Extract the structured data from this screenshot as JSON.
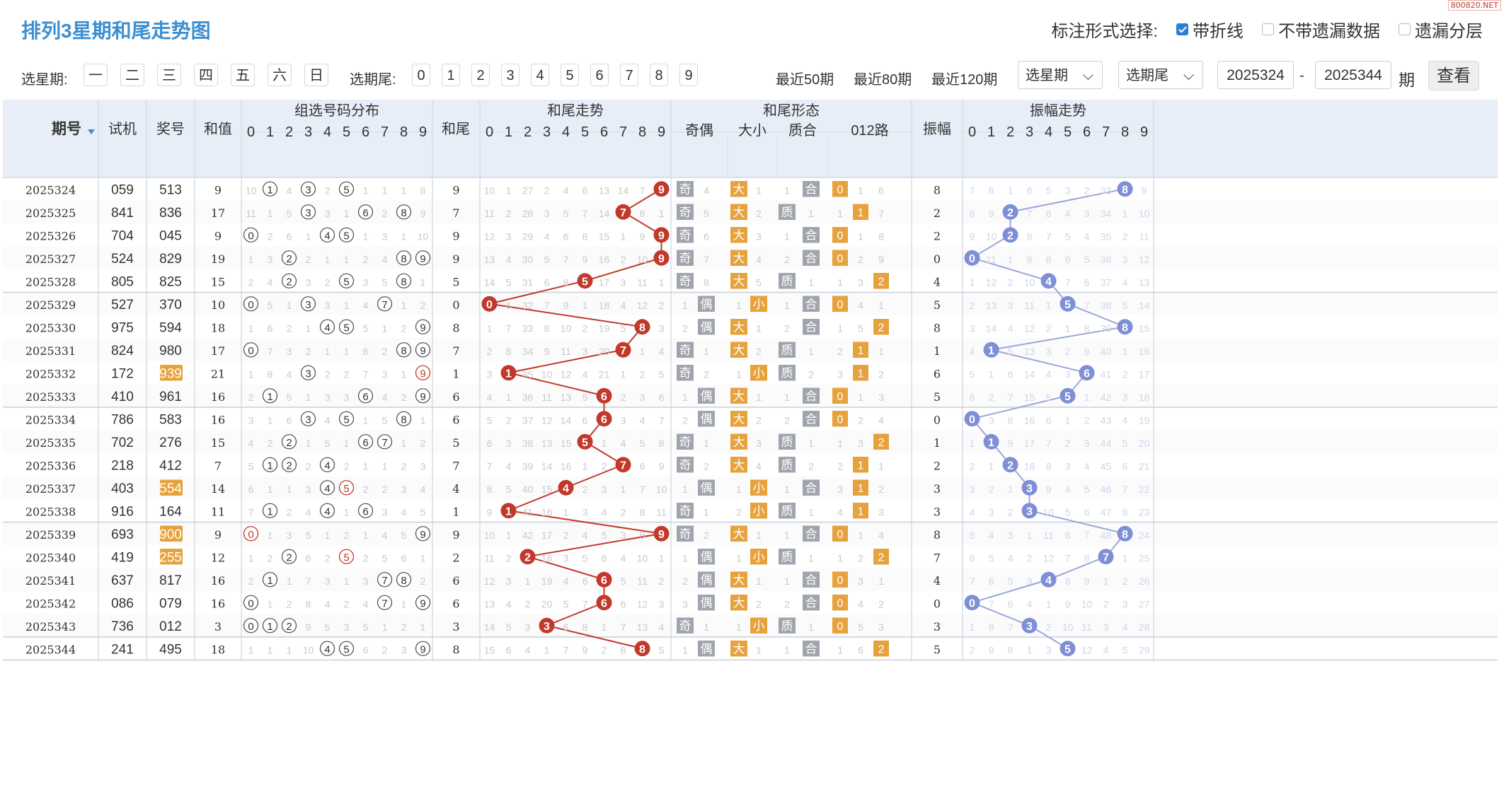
{
  "watermark": "800820.NET",
  "title": "排列3星期和尾走势图",
  "options": {
    "label": "标注形式选择:",
    "items": [
      {
        "label": "带折线",
        "checked": true
      },
      {
        "label": "不带遗漏数据",
        "checked": false
      },
      {
        "label": "遗漏分层",
        "checked": false
      }
    ]
  },
  "filter": {
    "week_label": "选星期:",
    "weeks": [
      "一",
      "二",
      "三",
      "四",
      "五",
      "六",
      "日"
    ],
    "tail_label": "选期尾:",
    "tails": [
      "0",
      "1",
      "2",
      "3",
      "4",
      "5",
      "6",
      "7",
      "8",
      "9"
    ],
    "recent": [
      "最近50期",
      "最近80期",
      "最近120期"
    ],
    "select_week": "选星期",
    "select_tail": "选期尾",
    "from": "2025324",
    "dash": "-",
    "to": "2025344",
    "period_word": "期",
    "view": "查看"
  },
  "headers": {
    "period": "期号",
    "test": "试机",
    "prize": "奖号",
    "sum": "和值",
    "dist": "组选号码分布",
    "tail": "和尾",
    "trend": "和尾走势",
    "shape": "和尾形态",
    "oddeven": "奇偶",
    "bigsmall": "大小",
    "primecomp": "质合",
    "road": "012路",
    "amp": "振幅",
    "amptrend": "振幅走势",
    "digits": [
      "0",
      "1",
      "2",
      "3",
      "4",
      "5",
      "6",
      "7",
      "8",
      "9"
    ]
  },
  "colors": {
    "header_bg": "#e7eef7",
    "header_text": "#333333",
    "ball_red": "#c0392b",
    "ball_blue": "#7e8fd6",
    "tag_orange": "#e6a23c",
    "tag_gray": "#a0a4ad",
    "miss_gray": "#c9c9c9",
    "row_alt": "#fbfbfb"
  },
  "rows": [
    {
      "period": "2025324",
      "test": "059",
      "prize": "513",
      "ph": false,
      "sum": "9",
      "dist": [
        "10",
        "①",
        "4",
        "③",
        "2",
        "⑤",
        "1",
        "1",
        "1",
        "8"
      ],
      "tail": "9",
      "trend": [
        "10",
        "1",
        "27",
        "2",
        "4",
        "6",
        "13",
        "14",
        "7",
        "9"
      ],
      "oe": "奇",
      "oe_n": "4",
      "oe_pos": 0,
      "bs": "大",
      "bs_n": "1",
      "bs_pos": 0,
      "pc": "合",
      "pc_n": "1",
      "pc_pos": 1,
      "rd": [
        "0",
        "1",
        "6"
      ],
      "rd_pos": 0,
      "amp": "8",
      "at": [
        "7",
        "8",
        "1",
        "6",
        "5",
        "3",
        "2",
        "33",
        "8",
        "9"
      ]
    },
    {
      "period": "2025325",
      "test": "841",
      "prize": "836",
      "ph": false,
      "sum": "17",
      "dist": [
        "11",
        "1",
        "5",
        "③",
        "3",
        "1",
        "⑥",
        "2",
        "⑧",
        "9"
      ],
      "tail": "7",
      "trend": [
        "11",
        "2",
        "28",
        "3",
        "5",
        "7",
        "14",
        "7",
        "8",
        "1"
      ],
      "oe": "奇",
      "oe_n": "5",
      "oe_pos": 0,
      "bs": "大",
      "bs_n": "2",
      "bs_pos": 0,
      "pc": "质",
      "pc_n": "1",
      "pc_pos": 0,
      "rd": [
        "1",
        "1",
        "7"
      ],
      "rd_pos": 1,
      "amp": "2",
      "at": [
        "8",
        "9",
        "2",
        "7",
        "6",
        "4",
        "3",
        "34",
        "1",
        "10"
      ]
    },
    {
      "period": "2025326",
      "test": "704",
      "prize": "045",
      "ph": false,
      "sum": "9",
      "dist": [
        "⓪",
        "2",
        "6",
        "1",
        "④",
        "⑤",
        "1",
        "3",
        "1",
        "10"
      ],
      "tail": "9",
      "trend": [
        "12",
        "3",
        "29",
        "4",
        "6",
        "8",
        "15",
        "1",
        "9",
        "9"
      ],
      "oe": "奇",
      "oe_n": "6",
      "oe_pos": 0,
      "bs": "大",
      "bs_n": "3",
      "bs_pos": 0,
      "pc": "合",
      "pc_n": "1",
      "pc_pos": 1,
      "rd": [
        "0",
        "1",
        "8"
      ],
      "rd_pos": 0,
      "amp": "2",
      "at": [
        "9",
        "10",
        "2",
        "8",
        "7",
        "5",
        "4",
        "35",
        "2",
        "11"
      ]
    },
    {
      "period": "2025327",
      "test": "524",
      "prize": "829",
      "ph": false,
      "sum": "19",
      "dist": [
        "1",
        "3",
        "②",
        "2",
        "1",
        "1",
        "2",
        "4",
        "⑧",
        "⑨"
      ],
      "tail": "9",
      "trend": [
        "13",
        "4",
        "30",
        "5",
        "7",
        "9",
        "16",
        "2",
        "10",
        "9"
      ],
      "oe": "奇",
      "oe_n": "7",
      "oe_pos": 0,
      "bs": "大",
      "bs_n": "4",
      "bs_pos": 0,
      "pc": "合",
      "pc_n": "2",
      "pc_pos": 1,
      "rd": [
        "0",
        "2",
        "9"
      ],
      "rd_pos": 0,
      "amp": "0",
      "at": [
        "0",
        "11",
        "1",
        "9",
        "8",
        "6",
        "5",
        "36",
        "3",
        "12"
      ]
    },
    {
      "period": "2025328",
      "test": "805",
      "prize": "825",
      "ph": false,
      "sum": "15",
      "dist": [
        "2",
        "4",
        "②",
        "3",
        "2",
        "⑤",
        "3",
        "5",
        "⑧",
        "1"
      ],
      "tail": "5",
      "trend": [
        "14",
        "5",
        "31",
        "6",
        "8",
        "5",
        "17",
        "3",
        "11",
        "1"
      ],
      "oe": "奇",
      "oe_n": "8",
      "oe_pos": 0,
      "bs": "大",
      "bs_n": "5",
      "bs_pos": 0,
      "pc": "质",
      "pc_n": "1",
      "pc_pos": 0,
      "rd": [
        "1",
        "3",
        "2"
      ],
      "rd_pos": 2,
      "amp": "4",
      "at": [
        "1",
        "12",
        "2",
        "10",
        "4",
        "7",
        "6",
        "37",
        "4",
        "13"
      ]
    },
    {
      "period": "2025329",
      "test": "527",
      "prize": "370",
      "ph": false,
      "sum": "10",
      "dist": [
        "⓪",
        "5",
        "1",
        "③",
        "3",
        "1",
        "4",
        "⑦",
        "1",
        "2"
      ],
      "tail": "0",
      "trend": [
        "0",
        "6",
        "32",
        "7",
        "9",
        "1",
        "18",
        "4",
        "12",
        "2"
      ],
      "oe": "偶",
      "oe_n": "1",
      "oe_pos": 1,
      "bs": "小",
      "bs_n": "1",
      "bs_pos": 1,
      "pc": "合",
      "pc_n": "1",
      "pc_pos": 1,
      "rd": [
        "0",
        "4",
        "1"
      ],
      "rd_pos": 0,
      "amp": "5",
      "at": [
        "2",
        "13",
        "3",
        "11",
        "1",
        "5",
        "7",
        "38",
        "5",
        "14"
      ]
    },
    {
      "period": "2025330",
      "test": "975",
      "prize": "594",
      "ph": false,
      "sum": "18",
      "dist": [
        "1",
        "6",
        "2",
        "1",
        "④",
        "⑤",
        "5",
        "1",
        "2",
        "⑨"
      ],
      "tail": "8",
      "trend": [
        "1",
        "7",
        "33",
        "8",
        "10",
        "2",
        "19",
        "5",
        "8",
        "3"
      ],
      "oe": "偶",
      "oe_n": "2",
      "oe_pos": 1,
      "bs": "大",
      "bs_n": "1",
      "bs_pos": 0,
      "pc": "合",
      "pc_n": "2",
      "pc_pos": 1,
      "rd": [
        "1",
        "5",
        "2"
      ],
      "rd_pos": 2,
      "amp": "8",
      "at": [
        "3",
        "14",
        "4",
        "12",
        "2",
        "1",
        "8",
        "39",
        "8",
        "15"
      ]
    },
    {
      "period": "2025331",
      "test": "824",
      "prize": "980",
      "ph": false,
      "sum": "17",
      "dist": [
        "⓪",
        "7",
        "3",
        "2",
        "1",
        "1",
        "6",
        "2",
        "⑧",
        "⑨"
      ],
      "tail": "7",
      "trend": [
        "2",
        "8",
        "34",
        "9",
        "11",
        "3",
        "20",
        "7",
        "1",
        "4"
      ],
      "oe": "奇",
      "oe_n": "1",
      "oe_pos": 0,
      "bs": "大",
      "bs_n": "2",
      "bs_pos": 0,
      "pc": "质",
      "pc_n": "1",
      "pc_pos": 0,
      "rd": [
        "2",
        "1",
        "1"
      ],
      "rd_pos": 1,
      "amp": "1",
      "at": [
        "4",
        "1",
        "5",
        "13",
        "3",
        "2",
        "9",
        "40",
        "1",
        "16"
      ]
    },
    {
      "period": "2025332",
      "test": "172",
      "prize": "939",
      "ph": true,
      "sum": "21",
      "dist": [
        "1",
        "8",
        "4",
        "③",
        "2",
        "2",
        "7",
        "3",
        "1",
        "⑨"
      ],
      "tail": "1",
      "trend": [
        "3",
        "1",
        "35",
        "10",
        "12",
        "4",
        "21",
        "1",
        "2",
        "5"
      ],
      "oe": "奇",
      "oe_n": "2",
      "oe_pos": 0,
      "bs": "小",
      "bs_n": "1",
      "bs_pos": 1,
      "pc": "质",
      "pc_n": "2",
      "pc_pos": 0,
      "rd": [
        "3",
        "1",
        "2"
      ],
      "rd_pos": 1,
      "amp": "6",
      "at": [
        "5",
        "1",
        "6",
        "14",
        "4",
        "3",
        "6",
        "41",
        "2",
        "17"
      ]
    },
    {
      "period": "2025333",
      "test": "410",
      "prize": "961",
      "ph": false,
      "sum": "16",
      "dist": [
        "2",
        "①",
        "5",
        "1",
        "3",
        "3",
        "⑥",
        "4",
        "2",
        "⑨"
      ],
      "tail": "6",
      "trend": [
        "4",
        "1",
        "36",
        "11",
        "13",
        "5",
        "6",
        "2",
        "3",
        "6"
      ],
      "oe": "偶",
      "oe_n": "1",
      "oe_pos": 1,
      "bs": "大",
      "bs_n": "1",
      "bs_pos": 0,
      "pc": "合",
      "pc_n": "1",
      "pc_pos": 1,
      "rd": [
        "0",
        "1",
        "3"
      ],
      "rd_pos": 0,
      "amp": "5",
      "at": [
        "6",
        "2",
        "7",
        "15",
        "5",
        "5",
        "1",
        "42",
        "3",
        "18"
      ]
    },
    {
      "period": "2025334",
      "test": "786",
      "prize": "583",
      "ph": false,
      "sum": "16",
      "dist": [
        "3",
        "1",
        "6",
        "③",
        "4",
        "⑤",
        "1",
        "5",
        "⑧",
        "1"
      ],
      "tail": "6",
      "trend": [
        "5",
        "2",
        "37",
        "12",
        "14",
        "6",
        "6",
        "3",
        "4",
        "7"
      ],
      "oe": "偶",
      "oe_n": "2",
      "oe_pos": 1,
      "bs": "大",
      "bs_n": "2",
      "bs_pos": 0,
      "pc": "合",
      "pc_n": "2",
      "pc_pos": 1,
      "rd": [
        "0",
        "2",
        "4"
      ],
      "rd_pos": 0,
      "amp": "0",
      "at": [
        "0",
        "3",
        "8",
        "16",
        "6",
        "1",
        "2",
        "43",
        "4",
        "19"
      ]
    },
    {
      "period": "2025335",
      "test": "702",
      "prize": "276",
      "ph": false,
      "sum": "15",
      "dist": [
        "4",
        "2",
        "②",
        "1",
        "5",
        "1",
        "⑥",
        "⑦",
        "1",
        "2"
      ],
      "tail": "5",
      "trend": [
        "6",
        "3",
        "38",
        "13",
        "15",
        "5",
        "1",
        "4",
        "5",
        "8"
      ],
      "oe": "奇",
      "oe_n": "1",
      "oe_pos": 0,
      "bs": "大",
      "bs_n": "3",
      "bs_pos": 0,
      "pc": "质",
      "pc_n": "1",
      "pc_pos": 0,
      "rd": [
        "1",
        "3",
        "2"
      ],
      "rd_pos": 2,
      "amp": "1",
      "at": [
        "1",
        "1",
        "9",
        "17",
        "7",
        "2",
        "3",
        "44",
        "5",
        "20"
      ]
    },
    {
      "period": "2025336",
      "test": "218",
      "prize": "412",
      "ph": false,
      "sum": "7",
      "dist": [
        "5",
        "①",
        "②",
        "2",
        "④",
        "2",
        "1",
        "1",
        "2",
        "3"
      ],
      "tail": "7",
      "trend": [
        "7",
        "4",
        "39",
        "14",
        "16",
        "1",
        "2",
        "7",
        "6",
        "9"
      ],
      "oe": "奇",
      "oe_n": "2",
      "oe_pos": 0,
      "bs": "大",
      "bs_n": "4",
      "bs_pos": 0,
      "pc": "质",
      "pc_n": "2",
      "pc_pos": 0,
      "rd": [
        "2",
        "1",
        "1"
      ],
      "rd_pos": 1,
      "amp": "2",
      "at": [
        "2",
        "1",
        "2",
        "18",
        "8",
        "3",
        "4",
        "45",
        "6",
        "21"
      ]
    },
    {
      "period": "2025337",
      "test": "403",
      "prize": "554",
      "ph": true,
      "sum": "14",
      "dist": [
        "6",
        "1",
        "1",
        "3",
        "④",
        "⑤",
        "2",
        "2",
        "3",
        "4"
      ],
      "tail": "4",
      "trend": [
        "8",
        "5",
        "40",
        "15",
        "4",
        "2",
        "3",
        "1",
        "7",
        "10"
      ],
      "oe": "偶",
      "oe_n": "1",
      "oe_pos": 1,
      "bs": "小",
      "bs_n": "1",
      "bs_pos": 1,
      "pc": "合",
      "pc_n": "1",
      "pc_pos": 1,
      "rd": [
        "3",
        "1",
        "2"
      ],
      "rd_pos": 1,
      "amp": "3",
      "at": [
        "3",
        "2",
        "1",
        "3",
        "9",
        "4",
        "5",
        "46",
        "7",
        "22"
      ]
    },
    {
      "period": "2025338",
      "test": "916",
      "prize": "164",
      "ph": false,
      "sum": "11",
      "dist": [
        "7",
        "①",
        "2",
        "4",
        "④",
        "1",
        "⑥",
        "3",
        "4",
        "5"
      ],
      "tail": "1",
      "trend": [
        "9",
        "1",
        "41",
        "16",
        "1",
        "3",
        "4",
        "2",
        "8",
        "11"
      ],
      "oe": "奇",
      "oe_n": "1",
      "oe_pos": 0,
      "bs": "小",
      "bs_n": "2",
      "bs_pos": 1,
      "pc": "质",
      "pc_n": "1",
      "pc_pos": 0,
      "rd": [
        "4",
        "1",
        "3"
      ],
      "rd_pos": 1,
      "amp": "3",
      "at": [
        "4",
        "3",
        "2",
        "3",
        "10",
        "5",
        "6",
        "47",
        "8",
        "23"
      ]
    },
    {
      "period": "2025339",
      "test": "693",
      "prize": "900",
      "ph": true,
      "sum": "9",
      "dist": [
        "⓪",
        "1",
        "3",
        "5",
        "1",
        "2",
        "1",
        "4",
        "5",
        "⑨"
      ],
      "tail": "9",
      "trend": [
        "10",
        "1",
        "42",
        "17",
        "2",
        "4",
        "5",
        "3",
        "9",
        "9"
      ],
      "oe": "奇",
      "oe_n": "2",
      "oe_pos": 0,
      "bs": "大",
      "bs_n": "1",
      "bs_pos": 0,
      "pc": "合",
      "pc_n": "1",
      "pc_pos": 1,
      "rd": [
        "0",
        "1",
        "4"
      ],
      "rd_pos": 0,
      "amp": "8",
      "at": [
        "5",
        "4",
        "3",
        "1",
        "11",
        "6",
        "7",
        "48",
        "8",
        "24"
      ]
    },
    {
      "period": "2025340",
      "test": "419",
      "prize": "255",
      "ph": true,
      "sum": "12",
      "dist": [
        "1",
        "2",
        "②",
        "6",
        "2",
        "⑤",
        "2",
        "5",
        "6",
        "1"
      ],
      "tail": "2",
      "trend": [
        "11",
        "2",
        "2",
        "18",
        "3",
        "5",
        "6",
        "4",
        "10",
        "1"
      ],
      "oe": "偶",
      "oe_n": "1",
      "oe_pos": 1,
      "bs": "小",
      "bs_n": "1",
      "bs_pos": 1,
      "pc": "质",
      "pc_n": "1",
      "pc_pos": 0,
      "rd": [
        "1",
        "2",
        "2"
      ],
      "rd_pos": 2,
      "amp": "7",
      "at": [
        "6",
        "5",
        "4",
        "2",
        "12",
        "7",
        "8",
        "7",
        "1",
        "25"
      ]
    },
    {
      "period": "2025341",
      "test": "637",
      "prize": "817",
      "ph": false,
      "sum": "16",
      "dist": [
        "2",
        "①",
        "1",
        "7",
        "3",
        "1",
        "3",
        "⑦",
        "⑧",
        "2"
      ],
      "tail": "6",
      "trend": [
        "12",
        "3",
        "1",
        "19",
        "4",
        "6",
        "6",
        "5",
        "11",
        "2"
      ],
      "oe": "偶",
      "oe_n": "2",
      "oe_pos": 1,
      "bs": "大",
      "bs_n": "1",
      "bs_pos": 0,
      "pc": "合",
      "pc_n": "1",
      "pc_pos": 1,
      "rd": [
        "0",
        "3",
        "1"
      ],
      "rd_pos": 0,
      "amp": "4",
      "at": [
        "7",
        "6",
        "5",
        "3",
        "4",
        "8",
        "9",
        "1",
        "2",
        "26"
      ]
    },
    {
      "period": "2025342",
      "test": "086",
      "prize": "079",
      "ph": false,
      "sum": "16",
      "dist": [
        "⓪",
        "1",
        "2",
        "8",
        "4",
        "2",
        "4",
        "⑦",
        "1",
        "⑨"
      ],
      "tail": "6",
      "trend": [
        "13",
        "4",
        "2",
        "20",
        "5",
        "7",
        "6",
        "6",
        "12",
        "3"
      ],
      "oe": "偶",
      "oe_n": "3",
      "oe_pos": 1,
      "bs": "大",
      "bs_n": "2",
      "bs_pos": 0,
      "pc": "合",
      "pc_n": "2",
      "pc_pos": 1,
      "rd": [
        "0",
        "4",
        "2"
      ],
      "rd_pos": 0,
      "amp": "0",
      "at": [
        "0",
        "7",
        "6",
        "4",
        "1",
        "9",
        "10",
        "2",
        "3",
        "27"
      ]
    },
    {
      "period": "2025343",
      "test": "736",
      "prize": "012",
      "ph": false,
      "sum": "3",
      "dist": [
        "⓪",
        "①",
        "②",
        "9",
        "5",
        "3",
        "5",
        "1",
        "2",
        "1"
      ],
      "tail": "3",
      "trend": [
        "14",
        "5",
        "3",
        "3",
        "6",
        "8",
        "1",
        "7",
        "13",
        "4"
      ],
      "oe": "奇",
      "oe_n": "1",
      "oe_pos": 0,
      "bs": "小",
      "bs_n": "1",
      "bs_pos": 1,
      "pc": "质",
      "pc_n": "1",
      "pc_pos": 0,
      "rd": [
        "0",
        "5",
        "3"
      ],
      "rd_pos": 0,
      "amp": "3",
      "at": [
        "1",
        "8",
        "7",
        "3",
        "2",
        "10",
        "11",
        "3",
        "4",
        "28"
      ]
    },
    {
      "period": "2025344",
      "test": "241",
      "prize": "495",
      "ph": false,
      "sum": "18",
      "dist": [
        "1",
        "1",
        "1",
        "10",
        "④",
        "⑤",
        "6",
        "2",
        "3",
        "⑨"
      ],
      "tail": "8",
      "trend": [
        "15",
        "6",
        "4",
        "1",
        "7",
        "9",
        "2",
        "8",
        "8",
        "5"
      ],
      "oe": "偶",
      "oe_n": "1",
      "oe_pos": 1,
      "bs": "大",
      "bs_n": "1",
      "bs_pos": 0,
      "pc": "合",
      "pc_n": "1",
      "pc_pos": 1,
      "rd": [
        "1",
        "6",
        "2"
      ],
      "rd_pos": 2,
      "amp": "5",
      "at": [
        "2",
        "9",
        "8",
        "1",
        "3",
        "5",
        "12",
        "4",
        "5",
        "29"
      ]
    }
  ]
}
